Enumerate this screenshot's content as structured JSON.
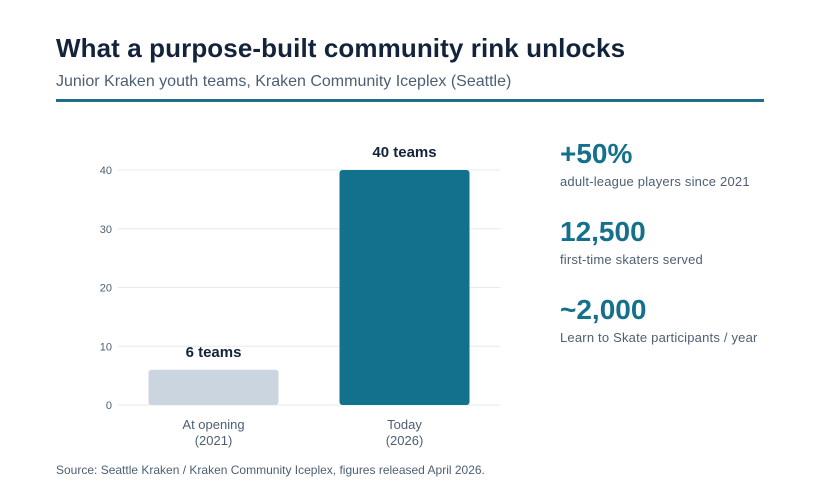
{
  "header": {
    "title": "What a purpose-built community rink unlocks",
    "subtitle": "Junior Kraken youth teams, Kraken Community Iceplex (Seattle)"
  },
  "chart_data": {
    "type": "bar",
    "categories": [
      [
        "At opening",
        "(2021)"
      ],
      [
        "Today",
        "(2026)"
      ]
    ],
    "values": [
      6,
      40
    ],
    "data_labels": [
      "6 teams",
      "40 teams"
    ],
    "colors": [
      "#cbd5e0",
      "#12718d"
    ],
    "yticks": [
      0,
      10,
      20,
      30,
      40
    ],
    "ylim": [
      0,
      40
    ],
    "title": "",
    "xlabel": "",
    "ylabel": "",
    "grid": true
  },
  "stats": [
    {
      "value": "+50%",
      "label": "adult-league players since 2021"
    },
    {
      "value": "12,500",
      "label": "first-time skaters served"
    },
    {
      "value": "~2,000",
      "label": "Learn to Skate participants / year"
    }
  ],
  "footer": {
    "source": "Source: Seattle Kraken / Kraken Community Iceplex, figures released April 2026."
  },
  "colors": {
    "accent": "#15708c",
    "title": "#13233b",
    "muted": "#4d5f73",
    "gridline": "#e6eaee"
  }
}
